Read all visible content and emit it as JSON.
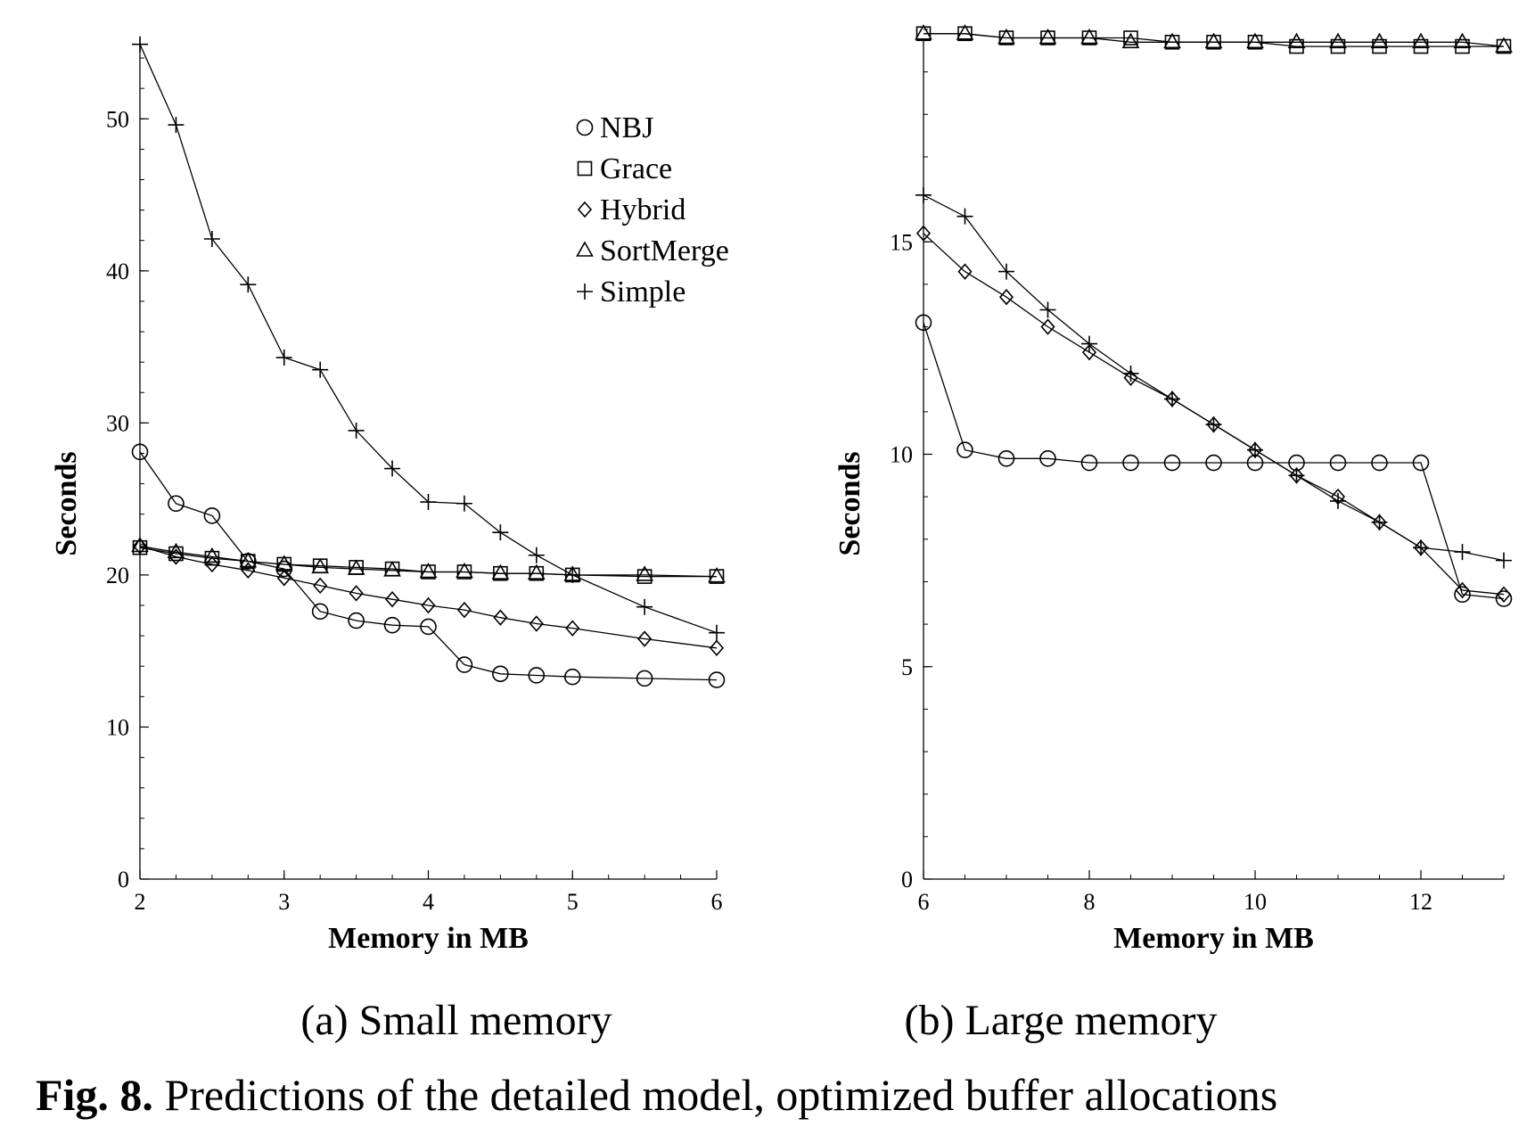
{
  "figure_caption": {
    "label": "Fig. 8.",
    "text": "Predictions of the detailed model, optimized buffer allocations"
  },
  "chart_data": [
    {
      "type": "line",
      "subcaption": "(a) Small memory",
      "xlabel": "Memory in MB",
      "ylabel": "Seconds",
      "xlim": [
        2,
        6
      ],
      "ylim": [
        0,
        55
      ],
      "xticks": [
        2,
        3,
        4,
        5,
        6
      ],
      "yticks": [
        0,
        10,
        20,
        30,
        40,
        50
      ],
      "legend": {
        "position": "top-right",
        "entries": [
          "NBJ",
          "Grace",
          "Hybrid",
          "SortMerge",
          "Simple"
        ]
      },
      "series": [
        {
          "name": "NBJ",
          "marker": "circle",
          "x": [
            2,
            2.25,
            2.5,
            2.75,
            3,
            3.25,
            3.5,
            3.75,
            4,
            4.25,
            4.5,
            4.75,
            5,
            5.5,
            6
          ],
          "y": [
            28.1,
            24.7,
            23.9,
            20.9,
            20.4,
            17.6,
            17.0,
            16.7,
            16.6,
            14.1,
            13.5,
            13.4,
            13.3,
            13.2,
            13.1
          ]
        },
        {
          "name": "Grace",
          "marker": "square",
          "x": [
            2,
            2.25,
            2.5,
            2.75,
            3,
            3.25,
            3.5,
            3.75,
            4,
            4.25,
            4.5,
            4.75,
            5,
            5.5,
            6
          ],
          "y": [
            21.8,
            21.4,
            21.1,
            20.9,
            20.7,
            20.6,
            20.5,
            20.4,
            20.2,
            20.2,
            20.1,
            20.1,
            20.0,
            19.9,
            19.9
          ]
        },
        {
          "name": "Hybrid",
          "marker": "diamond",
          "x": [
            2,
            2.25,
            2.5,
            2.75,
            3,
            3.25,
            3.5,
            3.75,
            4,
            4.25,
            4.5,
            4.75,
            5,
            5.5,
            6
          ],
          "y": [
            21.9,
            21.2,
            20.7,
            20.3,
            19.8,
            19.3,
            18.8,
            18.4,
            18.0,
            17.7,
            17.2,
            16.8,
            16.5,
            15.8,
            15.2
          ]
        },
        {
          "name": "SortMerge",
          "marker": "triangle",
          "x": [
            2,
            2.25,
            2.5,
            2.75,
            3,
            3.25,
            3.5,
            3.75,
            4,
            4.25,
            4.5,
            4.75,
            5,
            5.5,
            6
          ],
          "y": [
            21.9,
            21.5,
            21.2,
            20.9,
            20.7,
            20.5,
            20.4,
            20.3,
            20.2,
            20.2,
            20.1,
            20.1,
            20.0,
            20.0,
            19.9
          ]
        },
        {
          "name": "Simple",
          "marker": "plus",
          "x": [
            2,
            2.25,
            2.5,
            2.75,
            3,
            3.25,
            3.5,
            3.75,
            4,
            4.25,
            4.5,
            4.75,
            5,
            5.5,
            6
          ],
          "y": [
            54.9,
            49.6,
            42.1,
            39.1,
            34.3,
            33.5,
            29.5,
            27.0,
            24.8,
            24.7,
            22.8,
            21.3,
            20.0,
            17.9,
            16.2
          ]
        }
      ]
    },
    {
      "type": "line",
      "subcaption": "(b) Large memory",
      "xlabel": "Memory in MB",
      "ylabel": "Seconds",
      "xlim": [
        6,
        13
      ],
      "ylim": [
        0,
        20
      ],
      "xticks": [
        6,
        8,
        10,
        12
      ],
      "yticks": [
        0,
        5,
        10,
        15
      ],
      "series": [
        {
          "name": "NBJ",
          "marker": "circle",
          "x": [
            6,
            6.5,
            7,
            7.5,
            8,
            8.5,
            9,
            9.5,
            10,
            10.5,
            11,
            11.5,
            12,
            12.5,
            13
          ],
          "y": [
            13.1,
            10.1,
            9.9,
            9.9,
            9.8,
            9.8,
            9.8,
            9.8,
            9.8,
            9.8,
            9.8,
            9.8,
            9.8,
            6.7,
            6.6
          ]
        },
        {
          "name": "Grace",
          "marker": "square",
          "x": [
            6,
            6.5,
            7,
            7.5,
            8,
            8.5,
            9,
            9.5,
            10,
            10.5,
            11,
            11.5,
            12,
            12.5,
            13
          ],
          "y": [
            19.9,
            19.9,
            19.8,
            19.8,
            19.8,
            19.8,
            19.7,
            19.7,
            19.7,
            19.6,
            19.6,
            19.6,
            19.6,
            19.6,
            19.6
          ]
        },
        {
          "name": "Hybrid",
          "marker": "diamond",
          "x": [
            6,
            6.5,
            7,
            7.5,
            8,
            8.5,
            9,
            9.5,
            10,
            10.5,
            11,
            11.5,
            12,
            12.5,
            13
          ],
          "y": [
            15.2,
            14.3,
            13.7,
            13.0,
            12.4,
            11.8,
            11.3,
            10.7,
            10.1,
            9.5,
            9.0,
            8.4,
            7.8,
            6.8,
            6.7
          ]
        },
        {
          "name": "SortMerge",
          "marker": "triangle",
          "x": [
            6,
            6.5,
            7,
            7.5,
            8,
            8.5,
            9,
            9.5,
            10,
            10.5,
            11,
            11.5,
            12,
            12.5,
            13
          ],
          "y": [
            19.9,
            19.9,
            19.8,
            19.8,
            19.8,
            19.7,
            19.7,
            19.7,
            19.7,
            19.7,
            19.7,
            19.7,
            19.7,
            19.7,
            19.6
          ]
        },
        {
          "name": "Simple",
          "marker": "plus",
          "x": [
            6,
            6.5,
            7,
            7.5,
            8,
            8.5,
            9,
            9.5,
            10,
            10.5,
            11,
            11.5,
            12,
            12.5,
            13
          ],
          "y": [
            16.1,
            15.6,
            14.3,
            13.4,
            12.6,
            11.9,
            11.3,
            10.7,
            10.1,
            9.5,
            8.9,
            8.4,
            7.8,
            7.7,
            7.5
          ]
        }
      ]
    }
  ]
}
